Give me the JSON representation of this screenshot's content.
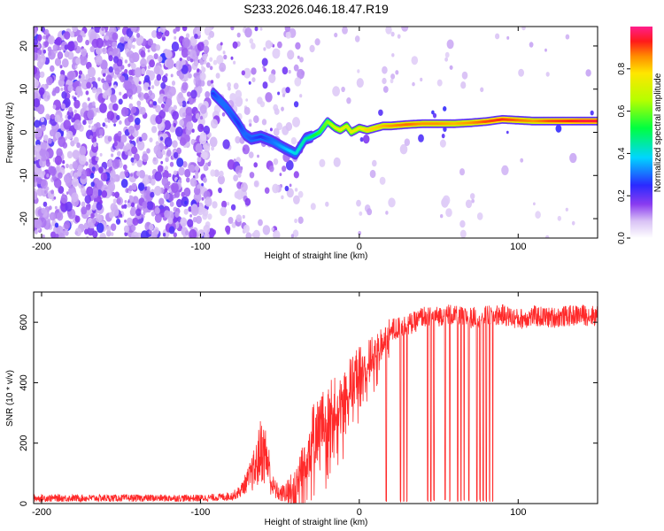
{
  "chart_data": [
    {
      "type": "heatmap",
      "title": "S233.2026.046.18.47.R19",
      "xlabel": "Height of straight line (km)",
      "ylabel": "Frequency (Hz)",
      "xlim": [
        -205,
        150
      ],
      "ylim": [
        -24.5,
        24.5
      ],
      "xticks": [
        -200,
        -100,
        0,
        100
      ],
      "yticks": [
        -20,
        -10,
        0,
        10,
        20
      ],
      "colorbar": {
        "label": "Normalized spectral amplitude",
        "range": [
          0,
          1
        ],
        "ticks": [
          "0.0",
          "0.2",
          "0.4",
          "0.6",
          "0.8"
        ],
        "tick_values": [
          0,
          0.2,
          0.4,
          0.6,
          0.8
        ]
      },
      "ridge": {
        "x": [
          -92,
          -88,
          -84,
          -80,
          -76,
          -72,
          -68,
          -62,
          -55,
          -48,
          -40,
          -34,
          -30,
          -25,
          -20,
          -15,
          -12,
          -8,
          -5,
          0,
          5,
          10,
          15,
          20,
          30,
          40,
          50,
          60,
          70,
          80,
          90,
          100,
          110,
          120,
          130,
          140,
          150
        ],
        "y": [
          9,
          7.5,
          6,
          4,
          2,
          -0.5,
          -1.5,
          -1,
          -2,
          -3.5,
          -5,
          -1.5,
          -1,
          0,
          2.5,
          1,
          0.5,
          1.5,
          0,
          1,
          0.5,
          1,
          1.5,
          1.5,
          1.8,
          2,
          2,
          2,
          2.2,
          2.5,
          3,
          2.8,
          2.6,
          2.6,
          2.6,
          2.6,
          2.6
        ],
        "amplitude": [
          0.25,
          0.3,
          0.3,
          0.28,
          0.25,
          0.3,
          0.28,
          0.25,
          0.3,
          0.35,
          0.4,
          0.45,
          0.5,
          0.55,
          0.6,
          0.7,
          0.75,
          0.7,
          0.72,
          0.75,
          0.8,
          0.8,
          0.82,
          0.85,
          0.88,
          0.85,
          0.85,
          0.82,
          0.85,
          0.9,
          0.92,
          0.88,
          0.85,
          0.9,
          0.92,
          0.95,
          0.95
        ]
      }
    },
    {
      "type": "line",
      "title": "",
      "xlabel": "Height of straight line (km)",
      "ylabel": "SNR (10 * v/v)",
      "xlim": [
        -205,
        150
      ],
      "ylim": [
        0,
        700
      ],
      "xticks": [
        -200,
        -100,
        0,
        100
      ],
      "yticks": [
        0,
        200,
        400,
        600
      ],
      "color": "#ff2a2a",
      "series": [
        {
          "name": "SNR",
          "x": [
            -205,
            -180,
            -160,
            -140,
            -120,
            -100,
            -90,
            -80,
            -75,
            -70,
            -65,
            -62,
            -58,
            -55,
            -50,
            -45,
            -40,
            -35,
            -30,
            -25,
            -20,
            -15,
            -10,
            -5,
            0,
            5,
            10,
            15,
            20,
            25,
            30,
            35,
            40,
            45,
            50,
            55,
            60,
            70,
            80,
            90,
            100,
            110,
            120,
            130,
            140,
            150
          ],
          "y": [
            18,
            18,
            18,
            18,
            18,
            18,
            20,
            25,
            40,
            80,
            120,
            180,
            150,
            60,
            30,
            40,
            70,
            150,
            220,
            250,
            290,
            320,
            340,
            400,
            440,
            470,
            500,
            540,
            570,
            580,
            590,
            600,
            620,
            615,
            620,
            630,
            620,
            615,
            620,
            625,
            610,
            620,
            615,
            620,
            625,
            620
          ],
          "noise": [
            12,
            12,
            12,
            12,
            12,
            12,
            12,
            15,
            20,
            40,
            80,
            110,
            100,
            40,
            25,
            40,
            70,
            90,
            100,
            110,
            110,
            100,
            100,
            90,
            80,
            70,
            60,
            55,
            45,
            40,
            40,
            35,
            35,
            35,
            35,
            35,
            35,
            35,
            35,
            35,
            35,
            35,
            35,
            35,
            35,
            35
          ]
        }
      ],
      "dropouts_x": [
        17,
        26,
        28,
        30,
        43,
        45,
        47,
        54,
        57,
        62,
        64,
        66,
        69,
        74,
        76,
        78,
        80,
        82,
        84
      ]
    }
  ]
}
